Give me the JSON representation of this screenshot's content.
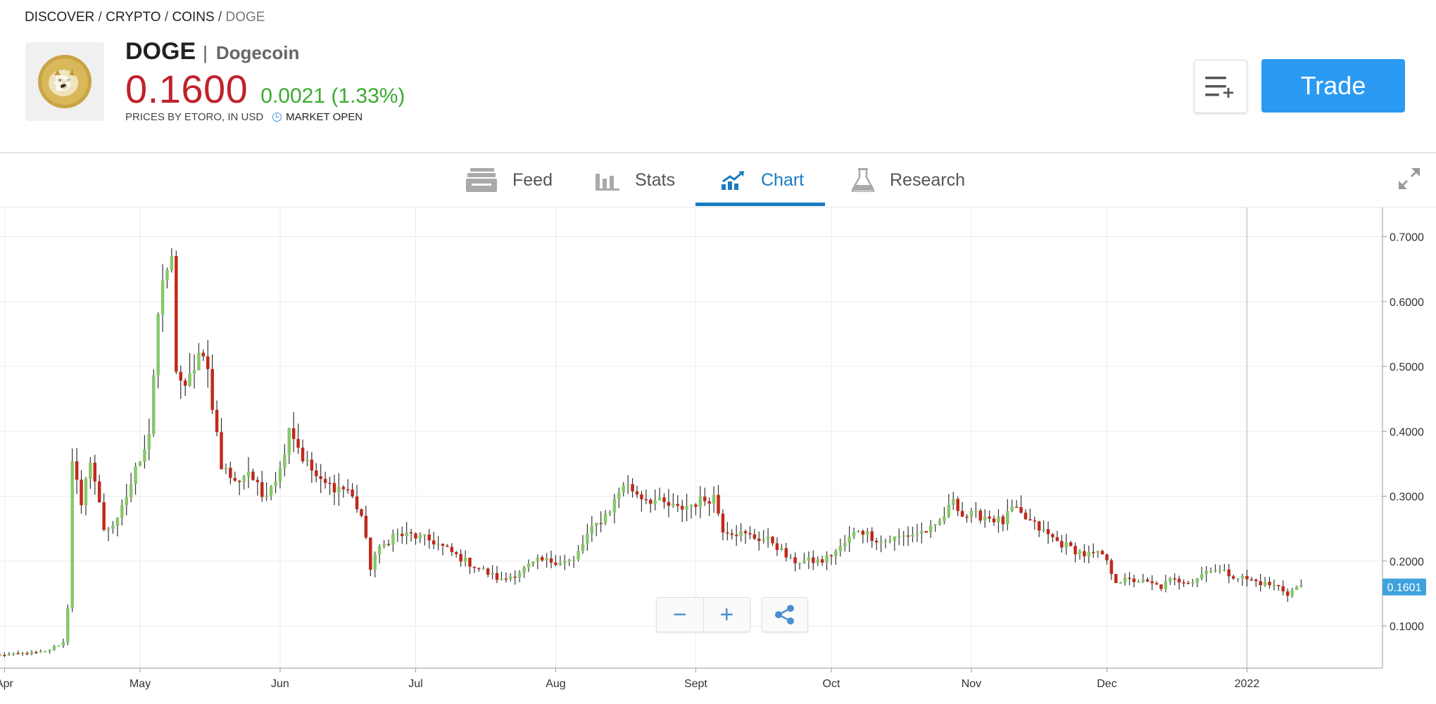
{
  "breadcrumb": {
    "items": [
      "DISCOVER",
      "CRYPTO",
      "COINS"
    ],
    "current": "DOGE",
    "separator": " / "
  },
  "instrument": {
    "ticker": "DOGE",
    "name": "Dogecoin",
    "price": "0.1600",
    "change": "0.0021 (1.33%)",
    "source": "PRICES BY ETORO, IN USD",
    "market_status": "MARKET OPEN",
    "logo_icon": "dogecoin-logo"
  },
  "actions": {
    "watchlist_icon": "add-to-watchlist-icon",
    "trade_label": "Trade"
  },
  "tabs": [
    {
      "label": "Feed",
      "icon": "feed-icon",
      "active": false
    },
    {
      "label": "Stats",
      "icon": "stats-icon",
      "active": false
    },
    {
      "label": "Chart",
      "icon": "chart-icon",
      "active": true
    },
    {
      "label": "Research",
      "icon": "research-flask-icon",
      "active": false
    }
  ],
  "colors": {
    "up": "#86c86a",
    "down": "#c0291b",
    "accent": "#1a7bc4",
    "trade_button": "#2b9af3",
    "price": "#c0222b",
    "change": "#3aab2e"
  },
  "chart_controls": {
    "zoom_out": "−",
    "zoom_in": "+",
    "share_icon": "share-icon"
  },
  "chart_data": {
    "type": "candlestick",
    "x_tick_labels": [
      "Apr",
      "May",
      "Jun",
      "Jul",
      "Aug",
      "Sept",
      "Oct",
      "Nov",
      "Dec",
      "2022"
    ],
    "y_tick_labels": [
      "0.1000",
      "0.2000",
      "0.3000",
      "0.4000",
      "0.5000",
      "0.6000",
      "0.7000"
    ],
    "ylim": [
      0.035,
      0.745
    ],
    "current_price_label": "0.1601",
    "x_start": "2021-03-31",
    "x_end": "2022-01-31",
    "grid": true,
    "anchors": [
      [
        "2021-03-31",
        0.055
      ],
      [
        "2021-04-10",
        0.06
      ],
      [
        "2021-04-14",
        0.075
      ],
      [
        "2021-04-15",
        0.13
      ],
      [
        "2021-04-16",
        0.36
      ],
      [
        "2021-04-18",
        0.28
      ],
      [
        "2021-04-20",
        0.36
      ],
      [
        "2021-04-23",
        0.25
      ],
      [
        "2021-04-26",
        0.26
      ],
      [
        "2021-04-28",
        0.3
      ],
      [
        "2021-05-01",
        0.36
      ],
      [
        "2021-05-03",
        0.4
      ],
      [
        "2021-05-05",
        0.58
      ],
      [
        "2021-05-07",
        0.65
      ],
      [
        "2021-05-08",
        0.66
      ],
      [
        "2021-05-09",
        0.5
      ],
      [
        "2021-05-11",
        0.46
      ],
      [
        "2021-05-14",
        0.52
      ],
      [
        "2021-05-16",
        0.49
      ],
      [
        "2021-05-19",
        0.35
      ],
      [
        "2021-05-22",
        0.32
      ],
      [
        "2021-05-25",
        0.34
      ],
      [
        "2021-05-28",
        0.3
      ],
      [
        "2021-06-01",
        0.34
      ],
      [
        "2021-06-03",
        0.41
      ],
      [
        "2021-06-06",
        0.36
      ],
      [
        "2021-06-10",
        0.32
      ],
      [
        "2021-06-16",
        0.31
      ],
      [
        "2021-06-19",
        0.27
      ],
      [
        "2021-06-21",
        0.19
      ],
      [
        "2021-06-22",
        0.21
      ],
      [
        "2021-06-26",
        0.24
      ],
      [
        "2021-06-30",
        0.24
      ],
      [
        "2021-07-05",
        0.23
      ],
      [
        "2021-07-12",
        0.2
      ],
      [
        "2021-07-20",
        0.17
      ],
      [
        "2021-07-23",
        0.18
      ],
      [
        "2021-07-28",
        0.2
      ],
      [
        "2021-08-01",
        0.2
      ],
      [
        "2021-08-05",
        0.2
      ],
      [
        "2021-08-08",
        0.24
      ],
      [
        "2021-08-13",
        0.28
      ],
      [
        "2021-08-16",
        0.32
      ],
      [
        "2021-08-20",
        0.3
      ],
      [
        "2021-08-24",
        0.29
      ],
      [
        "2021-08-28",
        0.28
      ],
      [
        "2021-09-01",
        0.29
      ],
      [
        "2021-09-05",
        0.3
      ],
      [
        "2021-09-07",
        0.25
      ],
      [
        "2021-09-12",
        0.24
      ],
      [
        "2021-09-18",
        0.23
      ],
      [
        "2021-09-22",
        0.2
      ],
      [
        "2021-09-29",
        0.2
      ],
      [
        "2021-10-03",
        0.22
      ],
      [
        "2021-10-07",
        0.25
      ],
      [
        "2021-10-12",
        0.23
      ],
      [
        "2021-10-18",
        0.24
      ],
      [
        "2021-10-24",
        0.25
      ],
      [
        "2021-10-27",
        0.28
      ],
      [
        "2021-10-28",
        0.3
      ],
      [
        "2021-10-30",
        0.27
      ],
      [
        "2021-11-04",
        0.27
      ],
      [
        "2021-11-08",
        0.26
      ],
      [
        "2021-11-10",
        0.28
      ],
      [
        "2021-11-16",
        0.25
      ],
      [
        "2021-11-20",
        0.23
      ],
      [
        "2021-11-26",
        0.21
      ],
      [
        "2021-11-30",
        0.21
      ],
      [
        "2021-12-03",
        0.17
      ],
      [
        "2021-12-08",
        0.17
      ],
      [
        "2021-12-13",
        0.16
      ],
      [
        "2021-12-15",
        0.17
      ],
      [
        "2021-12-20",
        0.17
      ],
      [
        "2021-12-24",
        0.19
      ],
      [
        "2021-12-28",
        0.18
      ],
      [
        "2022-01-02",
        0.17
      ],
      [
        "2022-01-08",
        0.16
      ],
      [
        "2022-01-10",
        0.15
      ],
      [
        "2022-01-12",
        0.16
      ],
      [
        "2022-01-13",
        0.16
      ]
    ]
  }
}
